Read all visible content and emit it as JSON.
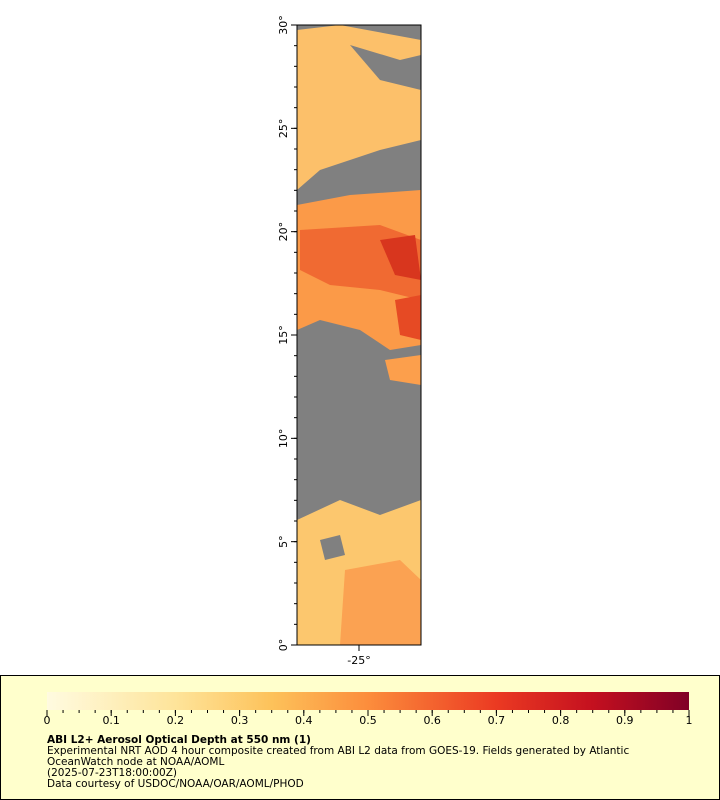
{
  "map": {
    "ylim": [
      0,
      30
    ],
    "yticks": [
      {
        "value": 0,
        "label": "0°"
      },
      {
        "value": 5,
        "label": "5°"
      },
      {
        "value": 10,
        "label": "10°"
      },
      {
        "value": 15,
        "label": "15°"
      },
      {
        "value": 20,
        "label": "20°"
      },
      {
        "value": 25,
        "label": "25°"
      },
      {
        "value": 30,
        "label": "30°"
      }
    ],
    "xlim": [
      -28,
      -22
    ],
    "xticks": [
      {
        "value": -25,
        "label": "-25°"
      }
    ]
  },
  "colorbar": {
    "range": [
      0,
      1
    ],
    "ticks": [
      0,
      0.1,
      0.2,
      0.3,
      0.4,
      0.5,
      0.6,
      0.7,
      0.8,
      0.9,
      1
    ]
  },
  "legend": {
    "title": "ABI L2+ Aerosol Optical Depth at 550 nm (1)",
    "lines": [
      "Experimental NRT AOD 4 hour composite created from ABI L2 data from GOES-19. Fields generated by Atlantic",
      "OceanWatch node at NOAA/AOML",
      "(2025-07-23T18:00:00Z)",
      "Data courtesy of USDOC/NOAA/OAR/AOML/PHOD"
    ]
  }
}
